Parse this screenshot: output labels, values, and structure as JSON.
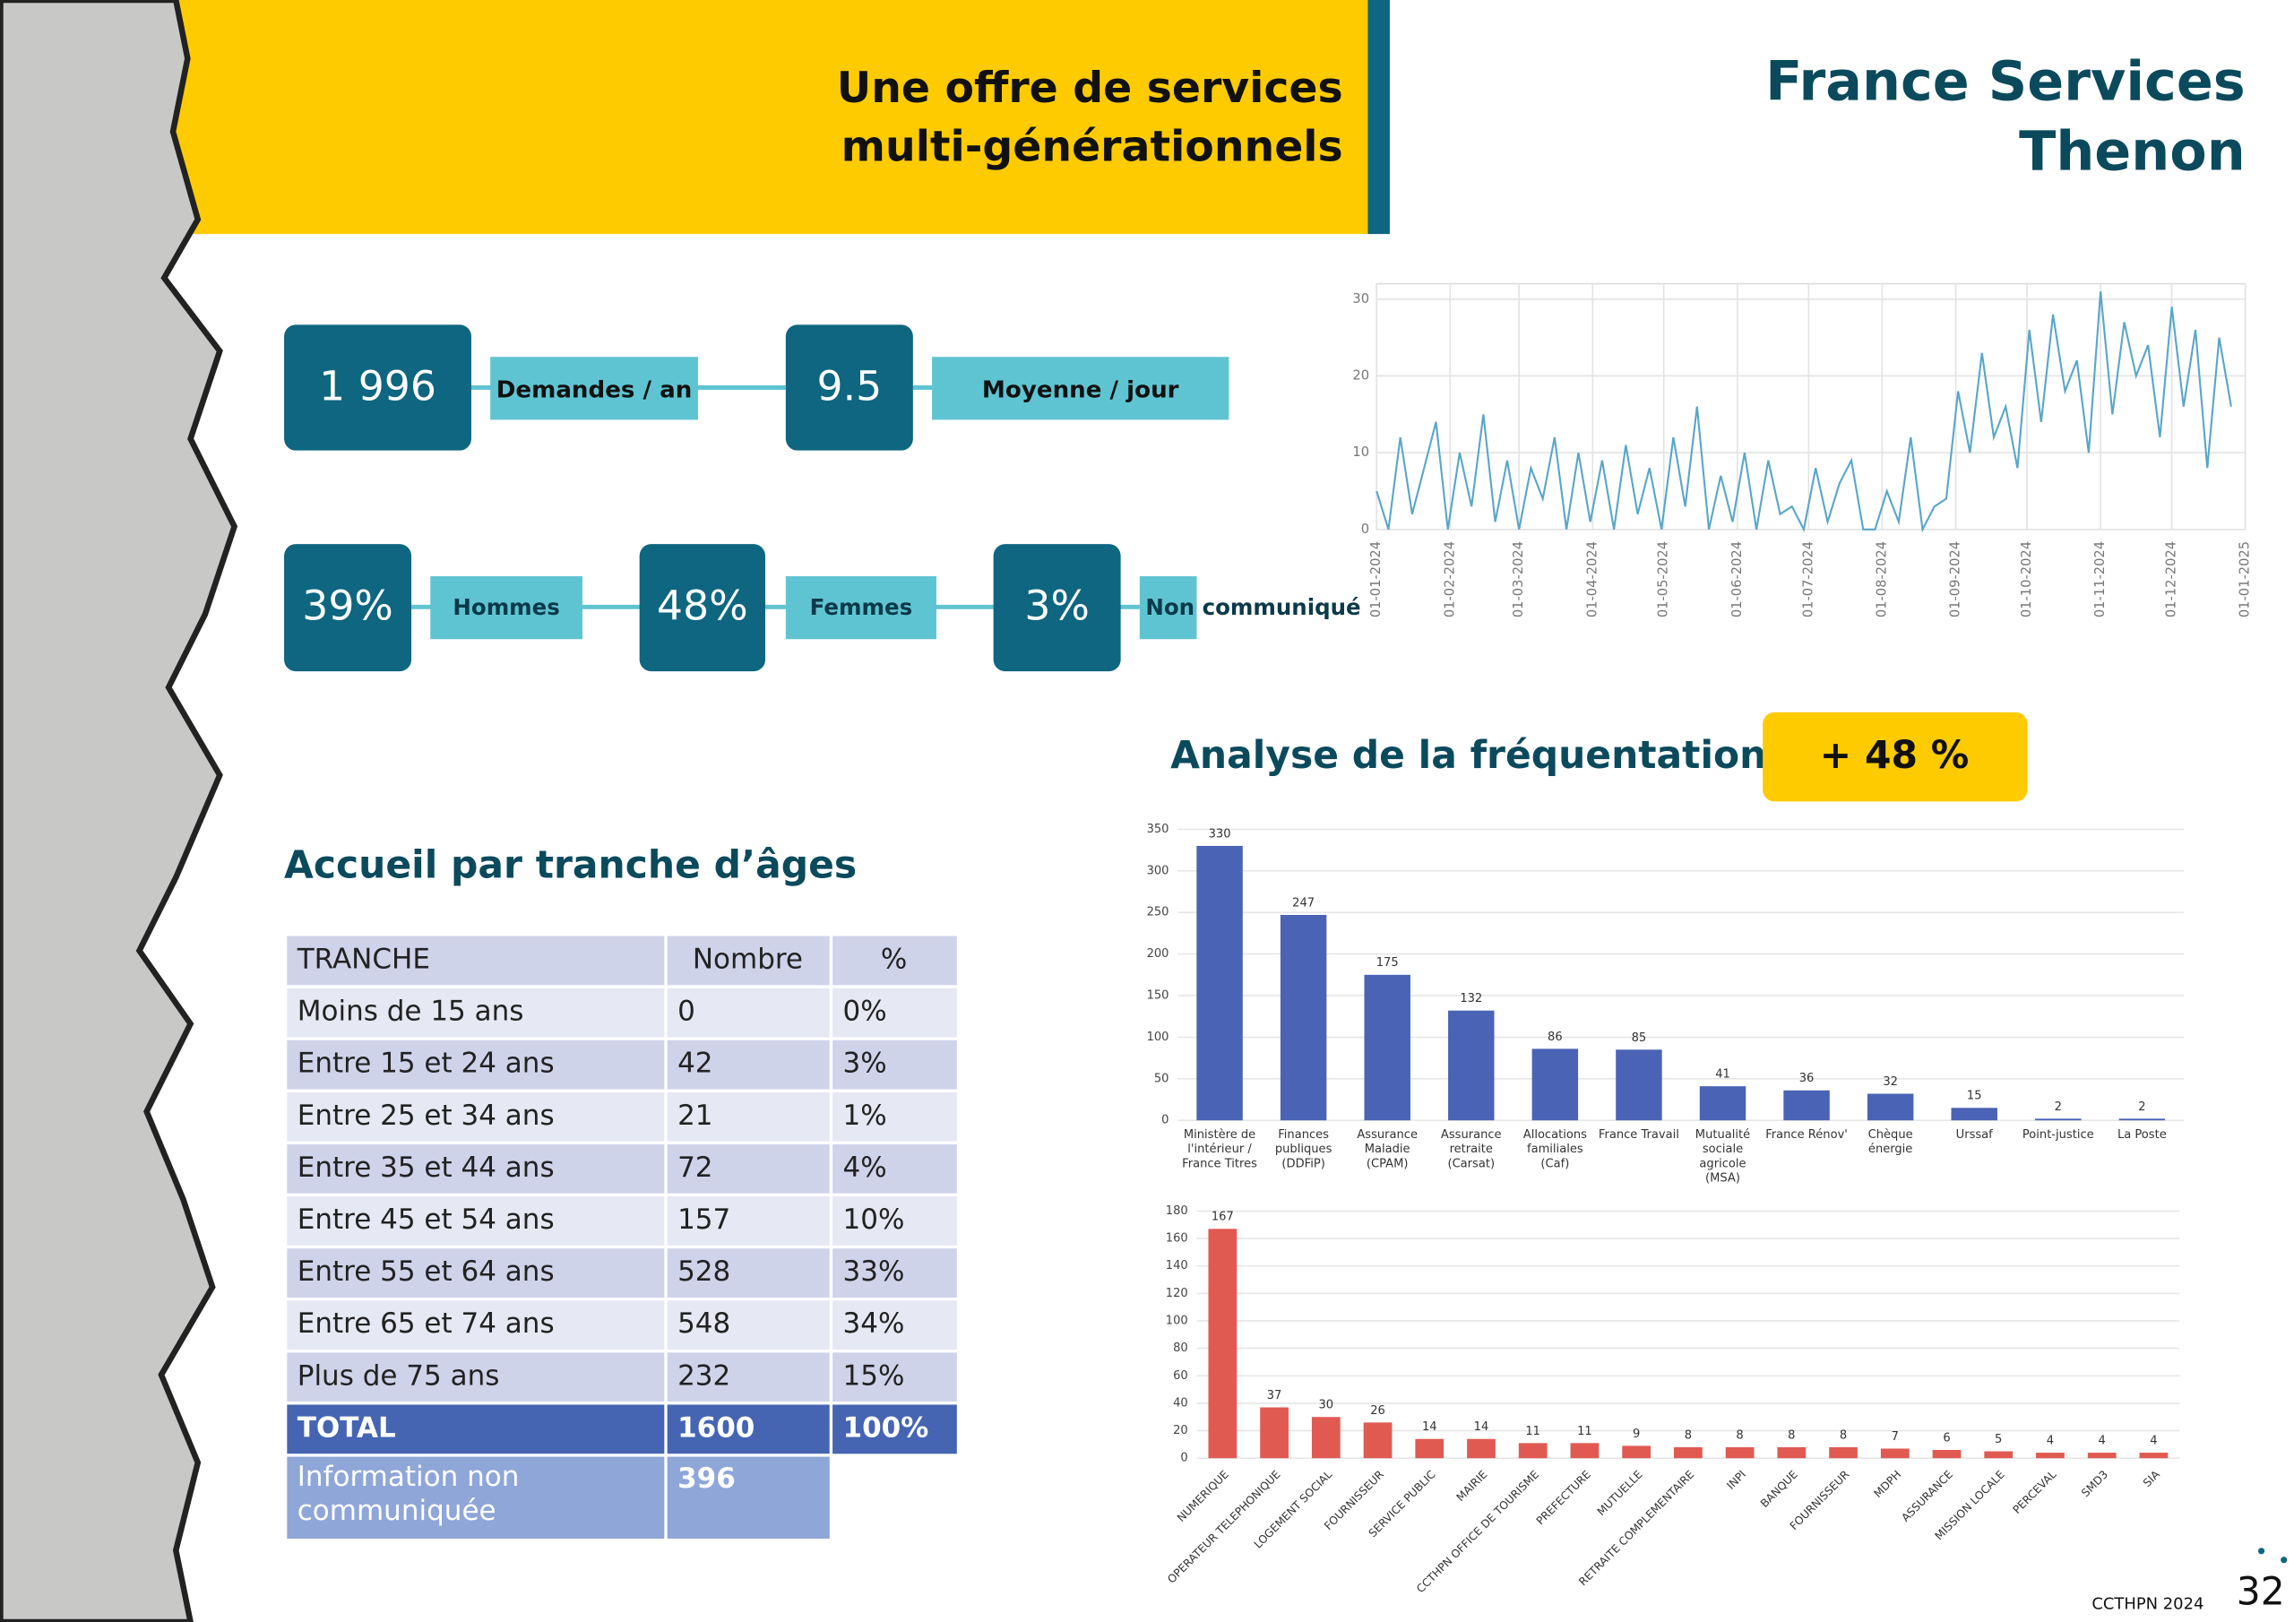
{
  "header": {
    "title": [
      "Une offre de services",
      "multi-générationnels"
    ],
    "brand": [
      "France Services",
      "Thenon"
    ]
  },
  "kpis": [
    {
      "value": "1 996",
      "label": "Demandes / an"
    },
    {
      "value": "9.5",
      "label": "Moyenne / jour"
    }
  ],
  "gender": [
    {
      "value": "39%",
      "label": "Hommes"
    },
    {
      "value": "48%",
      "label": "Femmes"
    },
    {
      "value": "3%",
      "label": "Non communiqué"
    }
  ],
  "frequentation": {
    "title": "Analyse de la fréquentation",
    "badge": "+ 48 %"
  },
  "chart_data": [
    {
      "type": "line",
      "color": "#5aa6c8",
      "grid": true,
      "xlim": [
        0,
        366
      ],
      "ylim": [
        0,
        32
      ],
      "yticks": [
        0,
        10,
        20,
        30
      ],
      "xticks": [
        {
          "value": 0,
          "label": "01-01-2024"
        },
        {
          "value": 31,
          "label": "01-02-2024"
        },
        {
          "value": 60,
          "label": "01-03-2024"
        },
        {
          "value": 91,
          "label": "01-04-2024"
        },
        {
          "value": 121,
          "label": "01-05-2024"
        },
        {
          "value": 152,
          "label": "01-06-2024"
        },
        {
          "value": 182,
          "label": "01-07-2024"
        },
        {
          "value": 213,
          "label": "01-08-2024"
        },
        {
          "value": 244,
          "label": "01-09-2024"
        },
        {
          "value": 274,
          "label": "01-10-2024"
        },
        {
          "value": 305,
          "label": "01-11-2024"
        },
        {
          "value": 335,
          "label": "01-12-2024"
        },
        {
          "value": 366,
          "label": "01-01-2025"
        }
      ],
      "x": [
        0,
        5,
        10,
        15,
        20,
        25,
        30,
        35,
        40,
        45,
        50,
        55,
        60,
        65,
        70,
        75,
        80,
        85,
        90,
        95,
        100,
        105,
        110,
        115,
        120,
        125,
        130,
        135,
        140,
        145,
        150,
        155,
        160,
        165,
        170,
        175,
        180,
        185,
        190,
        195,
        200,
        205,
        210,
        215,
        220,
        225,
        230,
        235,
        240,
        245,
        250,
        255,
        260,
        265,
        270,
        275,
        280,
        285,
        290,
        295,
        300,
        305,
        310,
        315,
        320,
        325,
        330,
        335,
        340,
        345,
        350,
        355,
        360
      ],
      "values": [
        5,
        0,
        12,
        2,
        8,
        14,
        0,
        10,
        3,
        15,
        1,
        9,
        0,
        8,
        4,
        12,
        0,
        10,
        1,
        9,
        0,
        11,
        2,
        8,
        0,
        12,
        3,
        16,
        0,
        7,
        1,
        10,
        0,
        9,
        2,
        3,
        0,
        8,
        1,
        6,
        9,
        0,
        0,
        5,
        1,
        12,
        0,
        3,
        4,
        18,
        10,
        23,
        12,
        16,
        8,
        26,
        14,
        28,
        18,
        22,
        10,
        31,
        15,
        27,
        20,
        24,
        12,
        29,
        16,
        26,
        8,
        25,
        16
      ]
    },
    {
      "type": "bar",
      "color": "#4a63b5",
      "grid": true,
      "ylim": [
        0,
        350
      ],
      "yticks": [
        0,
        50,
        100,
        150,
        200,
        250,
        300,
        350
      ],
      "categories": [
        "Ministère de l'intérieur / France Titres",
        "Finances publiques (DDFiP)",
        "Assurance Maladie (CPAM)",
        "Assurance retraite (Carsat)",
        "Allocations familiales (Caf)",
        "France Travail",
        "Mutualité sociale agricole (MSA)",
        "France Rénov'",
        "Chèque énergie",
        "Urssaf",
        "Point-justice",
        "La Poste"
      ],
      "values": [
        330,
        247,
        175,
        132,
        86,
        85,
        41,
        36,
        32,
        15,
        2,
        2
      ]
    },
    {
      "type": "bar",
      "color": "#e05a52",
      "grid": true,
      "ylim": [
        0,
        180
      ],
      "yticks": [
        0,
        20,
        40,
        60,
        80,
        100,
        120,
        140,
        160,
        180
      ],
      "categories": [
        "NUMERIQUE",
        "OPERATEUR TELEPHONIQUE",
        "LOGEMENT SOCIAL",
        "FOURNISSEUR",
        "SERVICE PUBLIC",
        "MAIRIE",
        "CCTHPN OFFICE DE TOURISME",
        "PREFECTURE",
        "MUTUELLE",
        "RETRAITE COMPLEMENTAIRE",
        "INPI",
        "BANQUE",
        "FOURNISSEUR",
        "MDPH",
        "ASSURANCE",
        "MISSION LOCALE",
        "PERCEVAL",
        "SMD3",
        "SIA"
      ],
      "values": [
        167,
        37,
        30,
        26,
        14,
        14,
        11,
        11,
        9,
        8,
        8,
        8,
        8,
        7,
        6,
        5,
        4,
        4,
        4
      ]
    }
  ],
  "table": {
    "title": "Accueil par tranche d’âges",
    "header": [
      "TRANCHE",
      "Nombre",
      "%"
    ],
    "rows": [
      [
        "Moins de 15 ans",
        "0",
        "0%"
      ],
      [
        "Entre 15 et 24 ans",
        "42",
        "3%"
      ],
      [
        "Entre 25 et 34 ans",
        "21",
        "1%"
      ],
      [
        "Entre 35 et 44 ans",
        "72",
        "4%"
      ],
      [
        "Entre 45 et 54 ans",
        "157",
        "10%"
      ],
      [
        "Entre 55 et 64 ans",
        "528",
        "33%"
      ],
      [
        "Entre 65 et 74 ans",
        "548",
        "34%"
      ],
      [
        "Plus de 75 ans",
        "232",
        "15%"
      ]
    ],
    "total": [
      "TOTAL",
      "1600",
      "100%"
    ],
    "note": [
      "Information non communiquée",
      "396"
    ]
  },
  "footer": {
    "text": "CCTHPN 2024",
    "page": "32"
  }
}
